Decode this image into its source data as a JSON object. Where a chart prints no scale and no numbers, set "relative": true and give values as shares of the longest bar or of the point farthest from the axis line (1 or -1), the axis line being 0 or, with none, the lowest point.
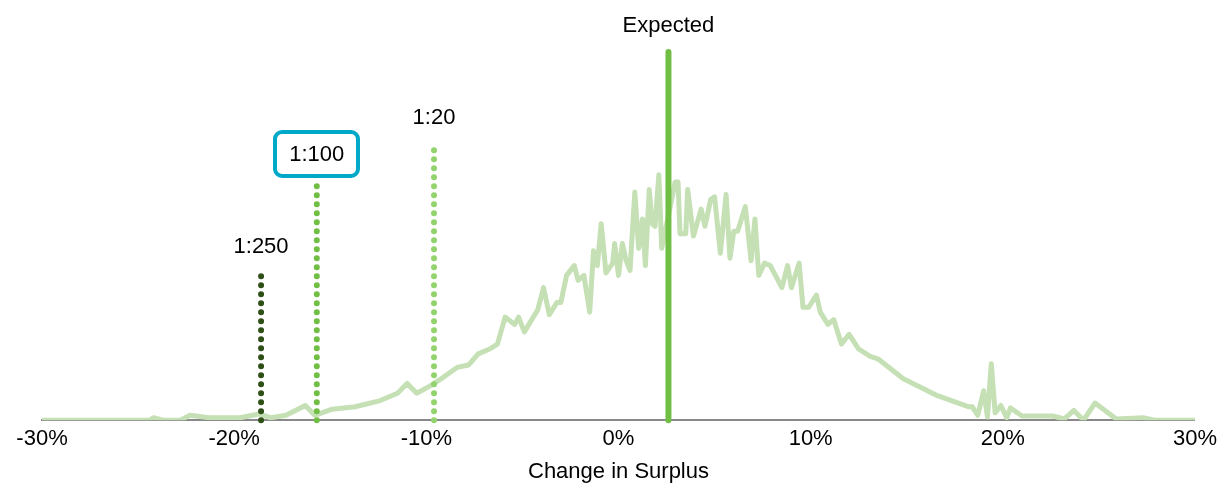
{
  "chart_data": {
    "type": "line",
    "relative": true,
    "xlabel": "Change in Surplus",
    "xlim": [
      -30,
      30
    ],
    "xticks": [
      {
        "value": -30,
        "label": "-30%"
      },
      {
        "value": -20,
        "label": "-20%"
      },
      {
        "value": -10,
        "label": "-10%"
      },
      {
        "value": 0,
        "label": "0%"
      },
      {
        "value": 10,
        "label": "10%"
      },
      {
        "value": 20,
        "label": "20%"
      },
      {
        "value": 30,
        "label": "30%"
      }
    ],
    "grid": false,
    "legend": false,
    "marker": "none",
    "line_style": "solid",
    "series": [
      {
        "color": "#c5e0b4",
        "x": [
          -30,
          -24.4,
          -24.2,
          -23.7,
          -22.8,
          -22.3,
          -21.3,
          -19.7,
          -18.7,
          -18.1,
          -17.3,
          -16.3,
          -15.8,
          -14.9,
          -13.7,
          -12.4,
          -11.5,
          -11.0,
          -10.5,
          -9.8,
          -9.3,
          -8.4,
          -7.8,
          -7.3,
          -6.7,
          -6.3,
          -5.9,
          -5.4,
          -5.2,
          -4.9,
          -4.2,
          -3.9,
          -3.6,
          -3.2,
          -3.0,
          -2.7,
          -2.3,
          -2.1,
          -1.8,
          -1.5,
          -1.3,
          -1.1,
          -0.9,
          -0.65,
          -0.3,
          -0.2,
          0,
          0.2,
          0.4,
          0.6,
          0.85,
          1.05,
          1.25,
          1.4,
          1.6,
          1.75,
          1.9,
          2.1,
          2.25,
          2.95,
          3.1,
          3.2,
          3.5,
          3.6,
          3.9,
          4.3,
          4.5,
          4.8,
          5.0,
          5.3,
          5.6,
          5.8,
          6.0,
          6.2,
          6.6,
          6.9,
          7.1,
          7.3,
          7.6,
          7.9,
          8.5,
          8.8,
          9.0,
          9.4,
          9.6,
          9.9,
          10.3,
          10.5,
          10.9,
          11.2,
          11.6,
          12.0,
          12.5,
          13.1,
          13.5,
          14.8,
          16.6,
          18.2,
          18.4,
          18.7,
          19.0,
          19.2,
          19.4,
          19.6,
          19.9,
          20.2,
          20.4,
          21.0,
          21.8,
          22.6,
          23.2,
          23.7,
          24.2,
          24.8,
          25.9,
          27.3,
          27.9,
          30
        ],
        "values": [
          0,
          0,
          0.01,
          0,
          0,
          0.02,
          0.01,
          0.01,
          0.025,
          0.01,
          0.02,
          0.06,
          0.02,
          0.045,
          0.055,
          0.08,
          0.11,
          0.15,
          0.11,
          0.14,
          0.165,
          0.215,
          0.225,
          0.27,
          0.29,
          0.31,
          0.42,
          0.39,
          0.42,
          0.36,
          0.45,
          0.54,
          0.43,
          0.48,
          0.48,
          0.59,
          0.63,
          0.57,
          0.59,
          0.44,
          0.69,
          0.63,
          0.8,
          0.6,
          0.64,
          0.72,
          0.59,
          0.72,
          0.65,
          0.61,
          0.93,
          0.7,
          0.82,
          0.63,
          0.94,
          0.8,
          0.79,
          1,
          0.7,
          0.97,
          0.97,
          0.76,
          0.76,
          0.94,
          0.75,
          0.86,
          0.79,
          0.9,
          0.91,
          0.68,
          0.92,
          0.66,
          0.77,
          0.77,
          0.87,
          0.65,
          0.82,
          0.59,
          0.64,
          0.63,
          0.54,
          0.63,
          0.54,
          0.64,
          0.46,
          0.46,
          0.51,
          0.44,
          0.39,
          0.41,
          0.31,
          0.35,
          0.29,
          0.26,
          0.25,
          0.17,
          0.1,
          0.055,
          0.055,
          0.02,
          0.12,
          0.013,
          0.23,
          0.03,
          0.06,
          0.01,
          0.05,
          0.017,
          0.017,
          0.017,
          0.005,
          0.04,
          0,
          0.07,
          0.005,
          0.01,
          0,
          0
        ]
      }
    ],
    "ref_lines": [
      {
        "axis": "x",
        "value": -18.6,
        "color": "#2e5017",
        "line_style": "dotted"
      },
      {
        "axis": "x",
        "value": -15.7,
        "color": "#70bf44",
        "line_style": "dotted"
      },
      {
        "axis": "x",
        "value": -9.6,
        "color": "#92d36e",
        "line_style": "dotted"
      },
      {
        "axis": "x",
        "value": 2.6,
        "label": "Expected",
        "color": "#70bf44",
        "line_style": "solid"
      }
    ],
    "annotations": [
      "1:250",
      "1:100",
      "1:20"
    ]
  }
}
